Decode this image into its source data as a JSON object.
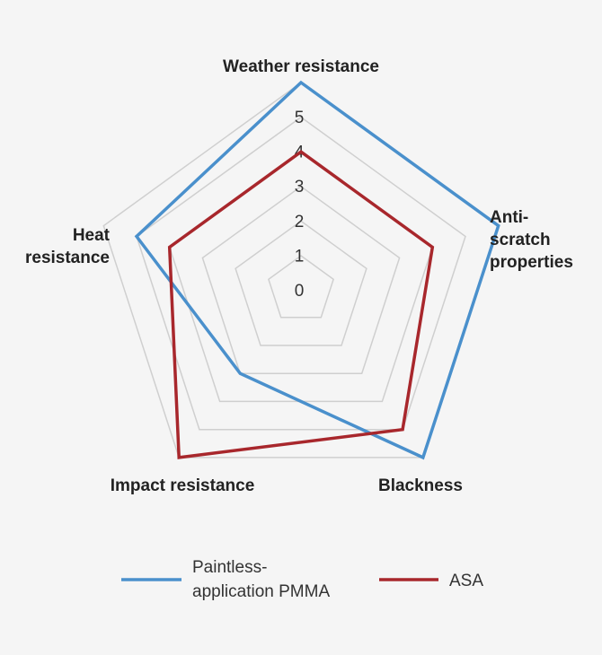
{
  "chart_data": {
    "type": "radar",
    "axes": [
      {
        "label_lines": [
          "Weather resistance"
        ]
      },
      {
        "label_lines": [
          "Anti-",
          "scratch",
          "properties"
        ]
      },
      {
        "label_lines": [
          "Blackness"
        ]
      },
      {
        "label_lines": [
          "Impact resistance"
        ]
      },
      {
        "label_lines": [
          "Heat",
          "resistance"
        ]
      }
    ],
    "ticks": [
      "0",
      "1",
      "2",
      "3",
      "4",
      "5"
    ],
    "range": [
      0,
      5
    ],
    "grid": true,
    "series": [
      {
        "name_lines": [
          "Paintless-",
          "application PMMA"
        ],
        "values": [
          5,
          5,
          5,
          2,
          4
        ],
        "color": "#4a90cc"
      },
      {
        "name_lines": [
          "ASA"
        ],
        "values": [
          3,
          3,
          4,
          5,
          3
        ],
        "color": "#a8272c"
      }
    ],
    "legend": "bottom"
  }
}
